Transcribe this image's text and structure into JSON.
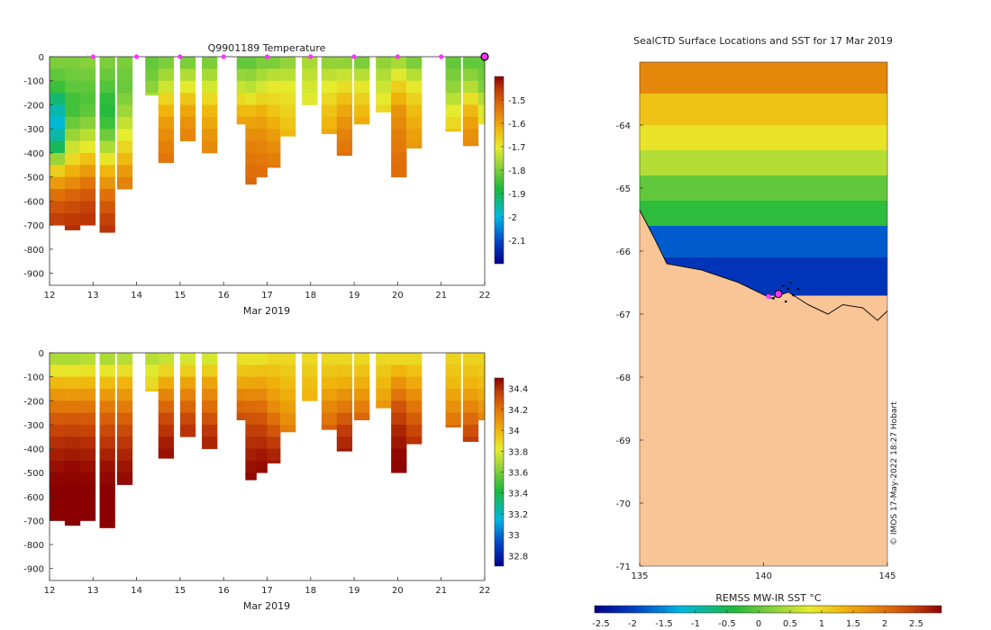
{
  "chart_data": [
    {
      "type": "heatmap",
      "title": "Q9901189  Temperature",
      "xlabel": "Mar 2019",
      "ylabel": "",
      "xlim": [
        12,
        22
      ],
      "ylim": [
        -950,
        0
      ],
      "x_ticks": [
        "12",
        "13",
        "14",
        "15",
        "16",
        "17",
        "18",
        "19",
        "20",
        "21",
        "22"
      ],
      "y_ticks": [
        "0",
        "-100",
        "-200",
        "-300",
        "-400",
        "-500",
        "-600",
        "-700",
        "-800",
        "-900"
      ],
      "surface_markers_day": [
        13,
        14,
        15,
        16,
        17,
        18,
        19,
        20,
        21
      ],
      "last_position_day": 22,
      "colorbar": {
        "min": -2.2,
        "max": -1.4,
        "ticks": [
          "-1.5",
          "-1.6",
          "-1.7",
          "-1.8",
          "-1.9",
          "-2",
          "-2.1"
        ]
      },
      "profiles": [
        {
          "day": 12.0,
          "max_depth": 700,
          "values": [
            -1.8,
            -1.84,
            -1.95,
            -2.0,
            -1.9,
            -1.68,
            -1.55,
            -1.48,
            -1.44
          ]
        },
        {
          "day": 12.35,
          "max_depth": 720,
          "values": [
            -1.8,
            -1.82,
            -1.86,
            -1.8,
            -1.72,
            -1.62,
            -1.52,
            -1.46,
            -1.44
          ]
        },
        {
          "day": 12.7,
          "max_depth": 700,
          "values": [
            -1.79,
            -1.82,
            -1.84,
            -1.78,
            -1.7,
            -1.6,
            -1.51,
            -1.46,
            -1.44
          ]
        },
        {
          "day": 13.15,
          "max_depth": 730,
          "values": [
            -1.8,
            -1.83,
            -1.88,
            -1.84,
            -1.74,
            -1.62,
            -1.53,
            -1.47,
            -1.44
          ]
        },
        {
          "day": 13.55,
          "max_depth": 550,
          "values": [
            -1.8,
            -1.82,
            -1.78,
            -1.72,
            -1.66,
            -1.58,
            -1.52
          ]
        },
        {
          "day": 14.2,
          "max_depth": 160,
          "values": [
            -1.82,
            -1.8,
            -1.75
          ]
        },
        {
          "day": 14.5,
          "max_depth": 440,
          "values": [
            -1.8,
            -1.74,
            -1.64,
            -1.58,
            -1.55,
            -1.52
          ]
        },
        {
          "day": 15.0,
          "max_depth": 350,
          "values": [
            -1.8,
            -1.72,
            -1.62,
            -1.57,
            -1.54
          ]
        },
        {
          "day": 15.5,
          "max_depth": 400,
          "values": [
            -1.8,
            -1.72,
            -1.63,
            -1.58,
            -1.55
          ]
        },
        {
          "day": 16.3,
          "max_depth": 280,
          "values": [
            -1.82,
            -1.74,
            -1.64,
            -1.58
          ]
        },
        {
          "day": 16.5,
          "max_depth": 530,
          "values": [
            -1.82,
            -1.74,
            -1.62,
            -1.56,
            -1.53,
            -1.51
          ]
        },
        {
          "day": 16.75,
          "max_depth": 500,
          "values": [
            -1.8,
            -1.72,
            -1.62,
            -1.57,
            -1.54,
            -1.52
          ]
        },
        {
          "day": 17.0,
          "max_depth": 460,
          "values": [
            -1.8,
            -1.7,
            -1.66,
            -1.6,
            -1.56,
            -1.53
          ]
        },
        {
          "day": 17.3,
          "max_depth": 330,
          "values": [
            -1.78,
            -1.7,
            -1.66,
            -1.62
          ]
        },
        {
          "day": 17.8,
          "max_depth": 200,
          "values": [
            -1.76,
            -1.72,
            -1.7
          ]
        },
        {
          "day": 18.25,
          "max_depth": 320,
          "values": [
            -1.78,
            -1.7,
            -1.64,
            -1.6
          ]
        },
        {
          "day": 18.6,
          "max_depth": 410,
          "values": [
            -1.78,
            -1.68,
            -1.6,
            -1.55,
            -1.52
          ]
        },
        {
          "day": 19.0,
          "max_depth": 280,
          "values": [
            -1.8,
            -1.7,
            -1.64,
            -1.6
          ]
        },
        {
          "day": 19.5,
          "max_depth": 230,
          "values": [
            -1.78,
            -1.72,
            -1.66
          ]
        },
        {
          "day": 19.85,
          "max_depth": 500,
          "values": [
            -1.76,
            -1.66,
            -1.58,
            -1.55,
            -1.53,
            -1.52
          ]
        },
        {
          "day": 20.2,
          "max_depth": 380,
          "values": [
            -1.8,
            -1.7,
            -1.64,
            -1.6,
            -1.58
          ]
        },
        {
          "day": 21.1,
          "max_depth": 310,
          "values": [
            -1.82,
            -1.78,
            -1.7,
            -1.64
          ]
        },
        {
          "day": 21.5,
          "max_depth": 370,
          "values": [
            -1.82,
            -1.76,
            -1.64,
            -1.58,
            -1.56
          ]
        },
        {
          "day": 21.85,
          "max_depth": 280,
          "values": [
            -1.82,
            -1.8,
            -1.72,
            -1.68
          ]
        }
      ]
    },
    {
      "type": "heatmap",
      "title": "",
      "xlabel": "Mar 2019",
      "ylabel": "",
      "xlim": [
        12,
        22
      ],
      "ylim": [
        -950,
        0
      ],
      "x_ticks": [
        "12",
        "13",
        "14",
        "15",
        "16",
        "17",
        "18",
        "19",
        "20",
        "21",
        "22"
      ],
      "y_ticks": [
        "0",
        "-100",
        "-200",
        "-300",
        "-400",
        "-500",
        "-600",
        "-700",
        "-800",
        "-900"
      ],
      "colorbar": {
        "min": 32.7,
        "max": 34.5,
        "ticks": [
          "34.4",
          "34.2",
          "34",
          "33.8",
          "33.6",
          "33.4",
          "33.2",
          "33",
          "32.8"
        ]
      },
      "profiles": [
        {
          "day": 12.0,
          "max_depth": 700,
          "values": [
            33.7,
            33.95,
            34.15,
            34.3,
            34.4,
            34.46,
            34.5,
            34.52,
            34.52
          ]
        },
        {
          "day": 12.35,
          "max_depth": 720,
          "values": [
            33.7,
            33.95,
            34.15,
            34.32,
            34.42,
            34.48,
            34.5,
            34.52,
            34.52
          ]
        },
        {
          "day": 12.7,
          "max_depth": 700,
          "values": [
            33.72,
            33.95,
            34.15,
            34.3,
            34.4,
            34.46,
            34.5,
            34.52,
            34.52
          ]
        },
        {
          "day": 13.15,
          "max_depth": 730,
          "values": [
            33.7,
            33.95,
            34.15,
            34.3,
            34.4,
            34.47,
            34.5,
            34.52,
            34.52
          ]
        },
        {
          "day": 13.55,
          "max_depth": 550,
          "values": [
            33.72,
            33.98,
            34.15,
            34.3,
            34.4,
            34.46,
            34.5
          ]
        },
        {
          "day": 14.2,
          "max_depth": 160,
          "values": [
            33.72,
            33.85,
            33.95
          ]
        },
        {
          "day": 14.5,
          "max_depth": 440,
          "values": [
            33.75,
            34.0,
            34.2,
            34.35,
            34.44,
            34.48
          ]
        },
        {
          "day": 15.0,
          "max_depth": 350,
          "values": [
            33.78,
            34.02,
            34.2,
            34.35,
            34.44
          ]
        },
        {
          "day": 15.5,
          "max_depth": 400,
          "values": [
            33.78,
            34.05,
            34.22,
            34.38,
            34.46
          ]
        },
        {
          "day": 16.3,
          "max_depth": 280,
          "values": [
            33.85,
            34.02,
            34.22,
            34.36
          ]
        },
        {
          "day": 16.5,
          "max_depth": 530,
          "values": [
            33.85,
            34.05,
            34.25,
            34.38,
            34.45,
            34.5
          ]
        },
        {
          "day": 16.75,
          "max_depth": 500,
          "values": [
            33.85,
            34.05,
            34.22,
            34.36,
            34.45,
            34.5
          ]
        },
        {
          "day": 17.0,
          "max_depth": 460,
          "values": [
            33.88,
            34.0,
            34.1,
            34.25,
            34.4,
            34.46
          ]
        },
        {
          "day": 17.3,
          "max_depth": 330,
          "values": [
            33.88,
            33.98,
            34.08,
            34.2
          ]
        },
        {
          "day": 17.8,
          "max_depth": 200,
          "values": [
            33.88,
            33.96,
            34.02
          ]
        },
        {
          "day": 18.25,
          "max_depth": 320,
          "values": [
            33.88,
            34.0,
            34.15,
            34.28
          ]
        },
        {
          "day": 18.6,
          "max_depth": 410,
          "values": [
            33.88,
            34.02,
            34.2,
            34.38,
            34.46
          ]
        },
        {
          "day": 19.0,
          "max_depth": 280,
          "values": [
            33.88,
            34.0,
            34.15,
            34.28
          ]
        },
        {
          "day": 19.5,
          "max_depth": 230,
          "values": [
            33.88,
            34.0,
            34.12
          ]
        },
        {
          "day": 19.85,
          "max_depth": 500,
          "values": [
            33.88,
            34.1,
            34.3,
            34.42,
            34.48,
            34.5
          ]
        },
        {
          "day": 20.2,
          "max_depth": 380,
          "values": [
            33.88,
            34.02,
            34.18,
            34.32,
            34.42
          ]
        },
        {
          "day": 21.1,
          "max_depth": 310,
          "values": [
            33.9,
            33.98,
            34.12,
            34.26
          ]
        },
        {
          "day": 21.5,
          "max_depth": 370,
          "values": [
            33.9,
            33.98,
            34.12,
            34.28,
            34.4
          ]
        },
        {
          "day": 21.85,
          "max_depth": 280,
          "values": [
            33.9,
            33.96,
            34.06,
            34.18
          ]
        }
      ]
    },
    {
      "type": "heatmap",
      "title": "SealCTD Surface Locations and SST for 17 Mar 2019",
      "xlabel": "",
      "ylabel": "",
      "xlim": [
        135,
        145
      ],
      "ylim": [
        -71,
        -63
      ],
      "x_ticks": [
        "135",
        "140",
        "145"
      ],
      "y_ticks": [
        "-64",
        "-65",
        "-66",
        "-67",
        "-68",
        "-69",
        "-70",
        "-71"
      ],
      "sst_rows": [
        {
          "lat_from": -63.0,
          "lat_to": -63.5,
          "sst": 1.8
        },
        {
          "lat_from": -63.5,
          "lat_to": -64.0,
          "sst": 1.2
        },
        {
          "lat_from": -64.0,
          "lat_to": -64.4,
          "sst": 0.9
        },
        {
          "lat_from": -64.4,
          "lat_to": -64.8,
          "sst": 0.5
        },
        {
          "lat_from": -64.8,
          "lat_to": -65.2,
          "sst": 0.0
        },
        {
          "lat_from": -65.2,
          "lat_to": -65.6,
          "sst": -0.3
        },
        {
          "lat_from": -65.6,
          "lat_to": -66.1,
          "sst": -1.8
        },
        {
          "lat_from": -66.1,
          "lat_to": -66.7,
          "sst": -2.1
        }
      ],
      "coast_lon": [
        135.0,
        135.6,
        136.1,
        137.5,
        139.0,
        140.3,
        141.0,
        141.8,
        142.6,
        143.2,
        144.0,
        144.6,
        145.0
      ],
      "coast_lat": [
        -65.35,
        -65.8,
        -66.2,
        -66.3,
        -66.5,
        -66.75,
        -66.65,
        -66.85,
        -67.0,
        -66.85,
        -66.9,
        -67.1,
        -66.95
      ],
      "seal_lon": [
        140.6,
        140.8,
        141.0,
        141.2,
        140.4,
        141.4,
        140.9,
        141.1
      ],
      "seal_lat": [
        -66.65,
        -66.55,
        -66.6,
        -66.7,
        -66.75,
        -66.6,
        -66.8,
        -66.5
      ],
      "pink_lon": [
        140.2,
        140.6
      ],
      "pink_lat": [
        -66.72,
        -66.68
      ],
      "colorbar": {
        "label": "REMSS MW-IR SST °C",
        "min": -2.6,
        "max": 2.9,
        "ticks": [
          "-2.5",
          "-2",
          "-1.5",
          "-1",
          "-0.5",
          "0",
          "0.5",
          "1",
          "1.5",
          "2",
          "2.5"
        ]
      },
      "credit": "© IMOS 17-May-2022 18:27 Hobart"
    }
  ]
}
